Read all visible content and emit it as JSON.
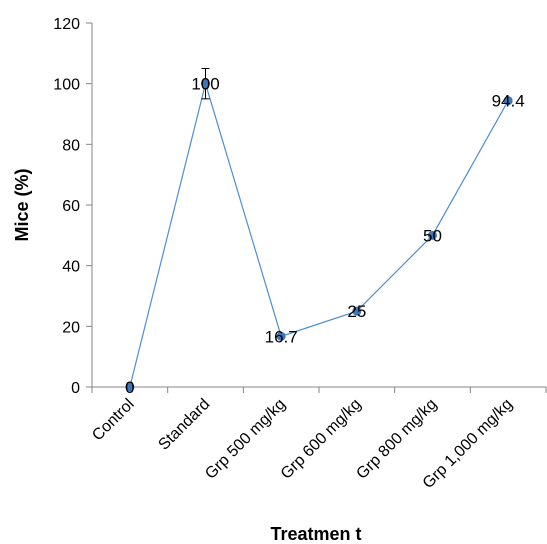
{
  "chart_data": {
    "type": "line",
    "categories": [
      "Control",
      "Standard",
      "Grp 500 mg/kg",
      "Grp 600 mg/kg",
      "Grp 800 mg/kg",
      "Grp 1,000 mg/kg"
    ],
    "values": [
      0,
      100,
      16.7,
      25,
      50,
      94.4
    ],
    "data_labels": [
      "0",
      "100",
      "16.7",
      "25",
      "50",
      "94.4"
    ],
    "error_bars": [
      null,
      5,
      null,
      null,
      null,
      null
    ],
    "xlabel": "Treatmen t",
    "ylabel": "Mice (%)",
    "ylim": [
      0,
      120
    ],
    "yticks": [
      0,
      20,
      40,
      60,
      80,
      100,
      120
    ],
    "ytick_labels": [
      "0",
      "20",
      "40",
      "60",
      "80",
      "100",
      "120"
    ],
    "grid": false,
    "series_color": "#4a8fd1",
    "marker_color": "#3d77b8"
  }
}
